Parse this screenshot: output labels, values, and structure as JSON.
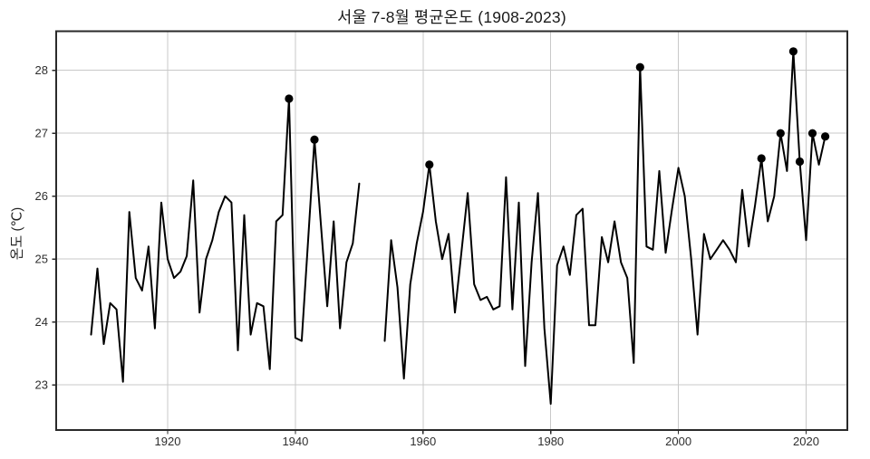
{
  "figure": {
    "title": "서울 7-8월 평균온도 (1908-2023)",
    "ylabel": "온도 (℃)"
  },
  "chart_data": {
    "type": "line",
    "title": "서울 7-8월 평균온도 (1908-2023)",
    "xlabel": "",
    "ylabel": "온도 (℃)",
    "x_ticks": [
      1920,
      1940,
      1960,
      1980,
      2000,
      2020
    ],
    "y_ticks": [
      23,
      24,
      25,
      26,
      27,
      28
    ],
    "xlim": [
      1902.5,
      2026.5
    ],
    "ylim": [
      22.28,
      28.62
    ],
    "grid": true,
    "legend": "none",
    "line_color": "#000000",
    "marker_color": "#000000",
    "note_missing_years": "1951-1953 have no data (line gap)",
    "years": [
      1908,
      1909,
      1910,
      1911,
      1912,
      1913,
      1914,
      1915,
      1916,
      1917,
      1918,
      1919,
      1920,
      1921,
      1922,
      1923,
      1924,
      1925,
      1926,
      1927,
      1928,
      1929,
      1930,
      1931,
      1932,
      1933,
      1934,
      1935,
      1936,
      1937,
      1938,
      1939,
      1940,
      1941,
      1942,
      1943,
      1944,
      1945,
      1946,
      1947,
      1948,
      1949,
      1950,
      1951,
      1952,
      1953,
      1954,
      1955,
      1956,
      1957,
      1958,
      1959,
      1960,
      1961,
      1962,
      1963,
      1964,
      1965,
      1966,
      1967,
      1968,
      1969,
      1970,
      1971,
      1972,
      1973,
      1974,
      1975,
      1976,
      1977,
      1978,
      1979,
      1980,
      1981,
      1982,
      1983,
      1984,
      1985,
      1986,
      1987,
      1988,
      1989,
      1990,
      1991,
      1992,
      1993,
      1994,
      1995,
      1996,
      1997,
      1998,
      1999,
      2000,
      2001,
      2002,
      2003,
      2004,
      2005,
      2006,
      2007,
      2008,
      2009,
      2010,
      2011,
      2012,
      2013,
      2014,
      2015,
      2016,
      2017,
      2018,
      2019,
      2020,
      2021,
      2022,
      2023
    ],
    "values": [
      23.8,
      24.85,
      23.65,
      24.3,
      24.2,
      23.05,
      25.75,
      24.7,
      24.5,
      25.2,
      23.9,
      25.9,
      25.0,
      24.7,
      24.8,
      25.05,
      26.25,
      24.15,
      25.0,
      25.3,
      25.75,
      26.0,
      25.9,
      23.55,
      25.7,
      23.8,
      24.3,
      24.25,
      23.25,
      25.6,
      25.7,
      27.55,
      23.75,
      23.7,
      25.3,
      26.9,
      25.55,
      24.25,
      25.6,
      23.9,
      24.95,
      25.25,
      26.2,
      null,
      null,
      null,
      23.7,
      25.3,
      24.55,
      23.1,
      24.6,
      25.25,
      25.75,
      26.5,
      25.6,
      25.0,
      25.4,
      24.15,
      25.1,
      26.05,
      24.6,
      24.35,
      24.4,
      24.2,
      24.25,
      26.3,
      24.2,
      25.9,
      23.3,
      24.95,
      26.05,
      23.9,
      22.7,
      24.9,
      25.2,
      24.75,
      25.7,
      25.8,
      23.95,
      23.95,
      25.35,
      24.95,
      25.6,
      24.95,
      24.7,
      23.35,
      28.05,
      25.2,
      25.15,
      26.4,
      25.1,
      25.8,
      26.45,
      26.0,
      25.0,
      23.8,
      25.4,
      25.0,
      25.15,
      25.3,
      25.15,
      24.95,
      26.1,
      25.2,
      25.85,
      26.6,
      25.6,
      26.0,
      27.0,
      26.4,
      28.3,
      26.55,
      25.3,
      27.0,
      26.5,
      26.95
    ],
    "highlight_years": [
      1939,
      1943,
      1961,
      1994,
      2013,
      2016,
      2018,
      2019,
      2021,
      2023
    ],
    "highlight_values": [
      27.55,
      26.9,
      26.5,
      28.05,
      26.6,
      27.0,
      28.3,
      26.55,
      27.0,
      26.95
    ]
  }
}
